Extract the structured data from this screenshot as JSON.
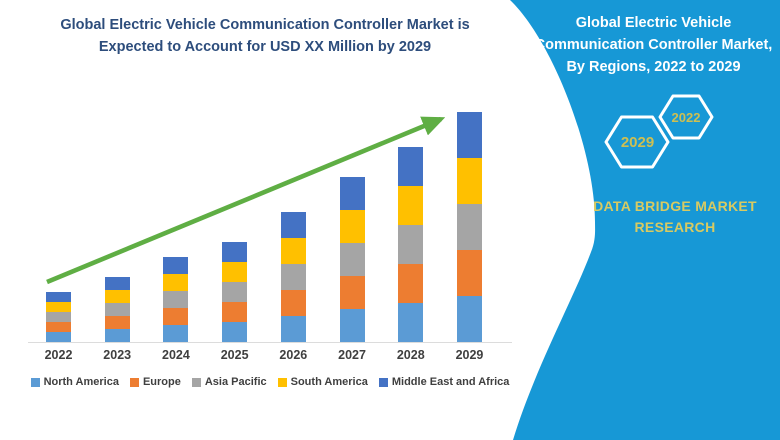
{
  "left_chart": {
    "title_lines": [
      "Global Electric Vehicle Communication Controller Market is",
      "Expected to Account for USD XX Million by 2029"
    ],
    "title_color": "#2d4d7c"
  },
  "chart_data": {
    "type": "bar",
    "stacked": true,
    "title": "Global Electric Vehicle Communication Controller Market is Expected to Account for USD XX Million by 2029",
    "xlabel": "",
    "ylabel": "",
    "values_unit": "relative market size (axis unlabeled, USD XX Million)",
    "categories": [
      "2022",
      "2023",
      "2024",
      "2025",
      "2026",
      "2027",
      "2028",
      "2029"
    ],
    "series": [
      {
        "name": "North America",
        "color": "#5b9bd5",
        "values": [
          10,
          13,
          17,
          20,
          26,
          33,
          39,
          46
        ]
      },
      {
        "name": "Europe",
        "color": "#ed7d31",
        "values": [
          10,
          13,
          17,
          20,
          26,
          33,
          39,
          46
        ]
      },
      {
        "name": "Asia Pacific",
        "color": "#a5a5a5",
        "values": [
          10,
          13,
          17,
          20,
          26,
          33,
          39,
          46
        ]
      },
      {
        "name": "South America",
        "color": "#ffc000",
        "values": [
          10,
          13,
          17,
          20,
          26,
          33,
          39,
          46
        ]
      },
      {
        "name": "Middle East and Africa",
        "color": "#4472c4",
        "values": [
          10,
          13,
          17,
          20,
          26,
          33,
          39,
          46
        ]
      }
    ],
    "totals": [
      50,
      65,
      85,
      100,
      130,
      165,
      195,
      230
    ],
    "legend_position": "bottom",
    "grid": false,
    "axis_line_color": "#dcdcdc",
    "tick_label_color": "#3f3f3f",
    "trend_arrow": {
      "color": "#5fae44",
      "from_year": "2022",
      "to_year": "2029"
    }
  },
  "right_panel": {
    "background": "#1798d6",
    "header_lines": [
      "Global Electric Vehicle",
      "Communication Controller Market,",
      "By Regions, 2022 to 2029"
    ],
    "header_color": "#ffffff",
    "hexagons": [
      {
        "label": "2029"
      },
      {
        "label": "2022"
      }
    ],
    "hexagon_label_color": "#cdbf52",
    "brand_lines": [
      "DATA BRIDGE MARKET",
      "RESEARCH"
    ],
    "brand_color": "#d8ca62"
  }
}
